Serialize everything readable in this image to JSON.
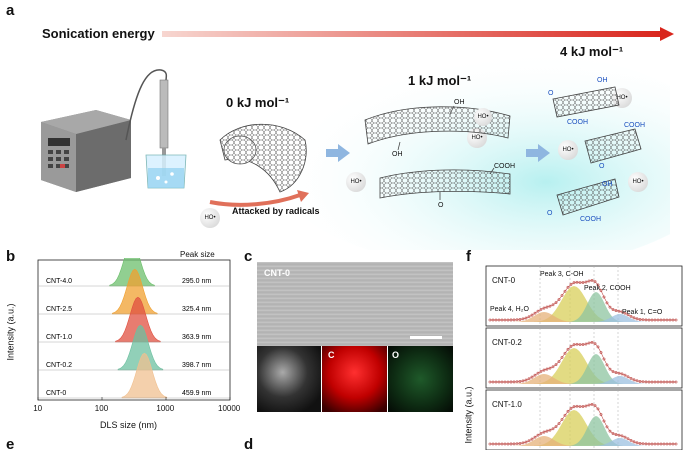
{
  "panel_a": {
    "label": "a",
    "sonication_label": "Sonication energy",
    "energies": [
      "0 kJ mol⁻¹",
      "1 kJ mol⁻¹",
      "4 kJ mol⁻¹"
    ],
    "attacked_label": "Attacked by radicals",
    "radical": "HO•",
    "groups": {
      "oh": "OH",
      "cooh": "COOH",
      "o": "O"
    }
  },
  "panel_b": {
    "label": "b",
    "peak_header": "Peak size",
    "xlabel": "DLS size (nm)",
    "ylabel": "Intensity (a.u.)",
    "xticks": [
      "10",
      "100",
      "1000",
      "10000"
    ]
  },
  "panel_c": {
    "label": "c",
    "title": "CNT-0",
    "map_c": "C",
    "map_o": "O"
  },
  "panel_d": {
    "label": "d"
  },
  "panel_e": {
    "label": "e"
  },
  "panel_f": {
    "label": "f",
    "ylabel": "Intensity (a.u.)",
    "samples": [
      "CNT-0",
      "CNT-0.2",
      "CNT-1.0"
    ],
    "peaks": [
      "Peak 3, C-OH",
      "Peak 2, COOH",
      "Peak 4, H₂O",
      "Peak 1, C=O"
    ]
  },
  "chart_data": [
    {
      "type": "area",
      "title": "",
      "xlabel": "DLS size (nm)",
      "ylabel": "Intensity (a.u.)",
      "xscale": "log",
      "xlim": [
        10,
        10000
      ],
      "grid": false,
      "series": [
        {
          "name": "CNT-4.0",
          "peak_size": "295.0 nm",
          "peak_value": 295.0,
          "color": "#6cbf6c"
        },
        {
          "name": "CNT-2.5",
          "peak_size": "325.4 nm",
          "peak_value": 325.4,
          "color": "#f0a030"
        },
        {
          "name": "CNT-1.0",
          "peak_size": "363.9 nm",
          "peak_value": 363.9,
          "color": "#e05040"
        },
        {
          "name": "CNT-0.2",
          "peak_size": "398.7 nm",
          "peak_value": 398.7,
          "color": "#6cc0a0"
        },
        {
          "name": "CNT-0",
          "peak_size": "459.9 nm",
          "peak_value": 459.9,
          "color": "#f0c090"
        }
      ]
    },
    {
      "type": "line",
      "title": "",
      "ylabel": "Intensity (a.u.)",
      "series": [
        {
          "name": "CNT-0"
        },
        {
          "name": "CNT-0.2"
        },
        {
          "name": "CNT-1.0"
        }
      ]
    }
  ]
}
